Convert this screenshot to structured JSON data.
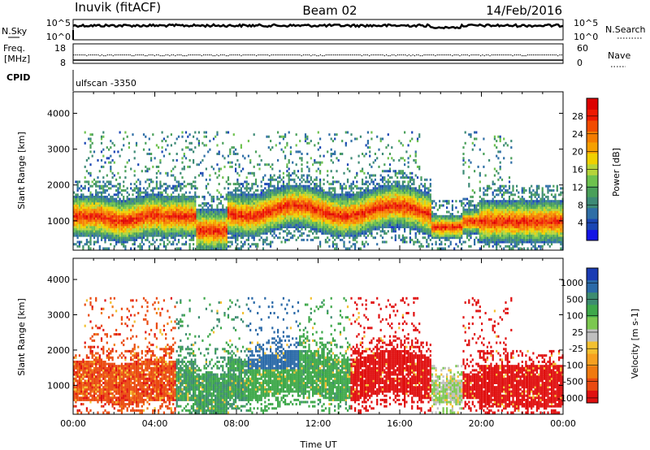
{
  "header": {
    "station": "Inuvik (fitACF)",
    "beam": "Beam 02",
    "date": "14/Feb/2016"
  },
  "noise_panel": {
    "left_label": "N.Sky",
    "right_label": "N.Search",
    "left_ticks": [
      "10^5",
      "10^0"
    ],
    "right_ticks": [
      "10^5",
      "10^0"
    ]
  },
  "freq_panel": {
    "left_label_1": "Freq.",
    "left_label_2": "[MHz]",
    "right_label": "Nave",
    "left_ticks": [
      "18",
      "8"
    ],
    "right_ticks": [
      "60",
      "0"
    ]
  },
  "cpid_panel": {
    "label": "CPID",
    "program": "ulfscan -3350"
  },
  "chart_data": [
    {
      "type": "heatmap",
      "name": "power",
      "ylabel": "Slant Range [km]",
      "ylim": [
        180,
        4600
      ],
      "yticks": [
        1000,
        2000,
        3000,
        4000
      ],
      "xlim": [
        0,
        24
      ],
      "colorbar": {
        "label": "Power [dB]",
        "range": [
          0,
          32
        ],
        "tick_labels": [
          "4",
          "8",
          "12",
          "16",
          "20",
          "24",
          "28"
        ],
        "tick_values": [
          4,
          8,
          12,
          16,
          20,
          24,
          28
        ],
        "colors": [
          "#1414e6",
          "#1a46b4",
          "#2e6ea6",
          "#3d8a76",
          "#4aa05a",
          "#6ec24e",
          "#b6d43a",
          "#f0d000",
          "#f6a000",
          "#f57d00",
          "#f24b00",
          "#ee1800",
          "#dd0000"
        ]
      }
    },
    {
      "type": "heatmap",
      "name": "velocity",
      "ylabel": "Slant Range [km]",
      "xlabel": "Time UT",
      "ylim": [
        180,
        4600
      ],
      "yticks": [
        1000,
        2000,
        3000,
        4000
      ],
      "xlim": [
        0,
        24
      ],
      "x_tick_labels": [
        "00:00",
        "04:00",
        "08:00",
        "12:00",
        "16:00",
        "20:00",
        "00:00"
      ],
      "x_tick_values": [
        0,
        4,
        8,
        12,
        16,
        20,
        24
      ],
      "colorbar": {
        "label": "Velocity [m s-1]",
        "tick_labels": [
          "1000",
          "500",
          "100",
          "25",
          "-25",
          "-100",
          "-500",
          "-1000"
        ],
        "colors": [
          "#1a3cb4",
          "#2b6aa8",
          "#3d8c70",
          "#3ea84a",
          "#7cc850",
          "#bfbfbf",
          "#f3c030",
          "#f6a020",
          "#f07a10",
          "#ea4a10",
          "#e01010"
        ]
      }
    }
  ]
}
